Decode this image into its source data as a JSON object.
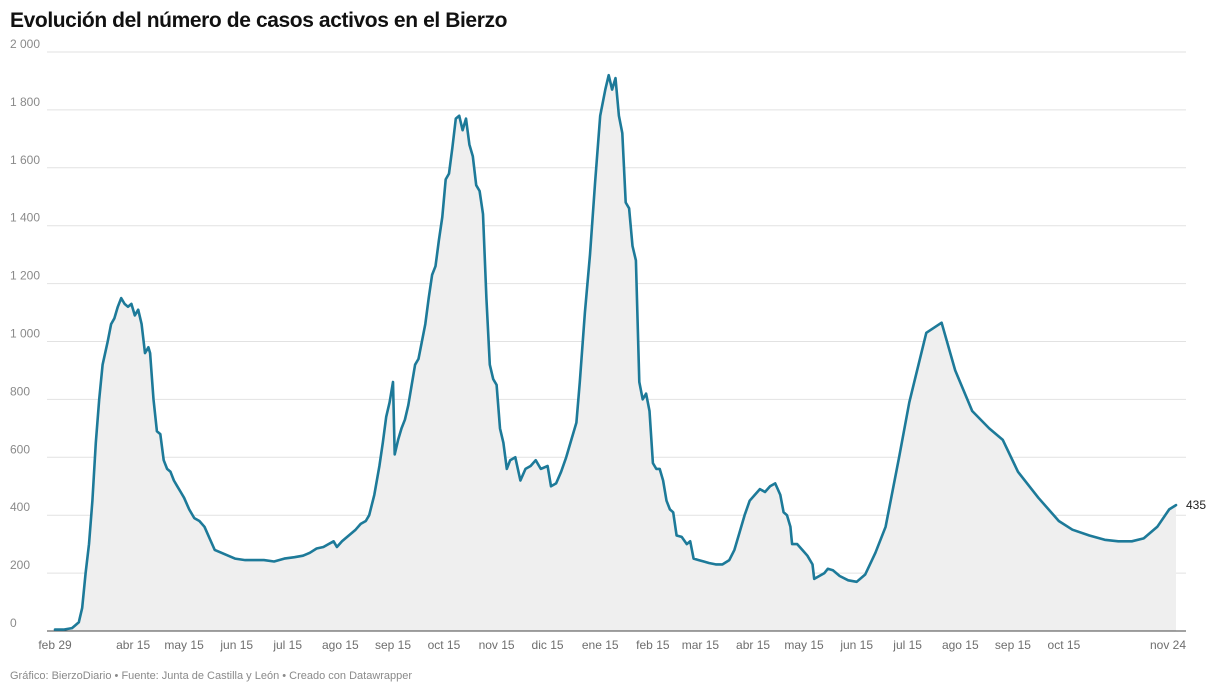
{
  "title": "Evolución del número de casos activos en el Bierzo",
  "footer": "Gráfico: BierzoDiario • Fuente: Junta de Castilla y León • Creado con Datawrapper",
  "colors": {
    "line": "#1d7a99",
    "area": "#efefef",
    "grid": "#e2e2e2",
    "axis": "#444444"
  },
  "chart_data": {
    "type": "area",
    "title": "Evolución del número de casos activos en el Bierzo",
    "xlabel": "",
    "ylabel": "",
    "ylim": [
      0,
      2000
    ],
    "yticks": [
      0,
      200,
      400,
      600,
      800,
      1000,
      1200,
      1400,
      1600,
      1800,
      2000
    ],
    "ytick_labels": [
      "0",
      "200",
      "400",
      "600",
      "800",
      "1 000",
      "1 200",
      "1 400",
      "1 600",
      "1 800",
      "2 000"
    ],
    "xlim": [
      "2020-02-29",
      "2021-11-24"
    ],
    "xticks": [
      {
        "date": "2020-02-29",
        "label": "feb 29"
      },
      {
        "date": "2020-04-15",
        "label": "abr 15"
      },
      {
        "date": "2020-05-15",
        "label": "may 15"
      },
      {
        "date": "2020-06-15",
        "label": "jun 15"
      },
      {
        "date": "2020-07-15",
        "label": "jul 15"
      },
      {
        "date": "2020-08-15",
        "label": "ago 15"
      },
      {
        "date": "2020-09-15",
        "label": "sep 15"
      },
      {
        "date": "2020-10-15",
        "label": "oct 15"
      },
      {
        "date": "2020-11-15",
        "label": "nov 15"
      },
      {
        "date": "2020-12-15",
        "label": "dic 15"
      },
      {
        "date": "2021-01-15",
        "label": "ene 15"
      },
      {
        "date": "2021-02-15",
        "label": "feb 15"
      },
      {
        "date": "2021-03-15",
        "label": "mar 15"
      },
      {
        "date": "2021-04-15",
        "label": "abr 15"
      },
      {
        "date": "2021-05-15",
        "label": "may 15"
      },
      {
        "date": "2021-06-15",
        "label": "jun 15"
      },
      {
        "date": "2021-07-15",
        "label": "jul 15"
      },
      {
        "date": "2021-08-15",
        "label": "ago 15"
      },
      {
        "date": "2021-09-15",
        "label": "sep 15"
      },
      {
        "date": "2021-10-15",
        "label": "oct 15"
      },
      {
        "date": "2021-11-24",
        "label": "nov 24"
      }
    ],
    "grid": true,
    "end_label": "435",
    "series": [
      {
        "points": [
          [
            "2020-02-29",
            5
          ],
          [
            "2020-03-05",
            5
          ],
          [
            "2020-03-10",
            10
          ],
          [
            "2020-03-12",
            20
          ],
          [
            "2020-03-14",
            30
          ],
          [
            "2020-03-16",
            80
          ],
          [
            "2020-03-18",
            200
          ],
          [
            "2020-03-20",
            300
          ],
          [
            "2020-03-22",
            450
          ],
          [
            "2020-03-24",
            650
          ],
          [
            "2020-03-26",
            800
          ],
          [
            "2020-03-28",
            920
          ],
          [
            "2020-03-31",
            1000
          ],
          [
            "2020-04-02",
            1060
          ],
          [
            "2020-04-04",
            1080
          ],
          [
            "2020-04-06",
            1120
          ],
          [
            "2020-04-08",
            1150
          ],
          [
            "2020-04-10",
            1130
          ],
          [
            "2020-04-12",
            1120
          ],
          [
            "2020-04-14",
            1130
          ],
          [
            "2020-04-16",
            1090
          ],
          [
            "2020-04-18",
            1110
          ],
          [
            "2020-04-20",
            1060
          ],
          [
            "2020-04-22",
            960
          ],
          [
            "2020-04-24",
            980
          ],
          [
            "2020-04-25",
            960
          ],
          [
            "2020-04-27",
            800
          ],
          [
            "2020-04-29",
            690
          ],
          [
            "2020-05-01",
            680
          ],
          [
            "2020-05-03",
            590
          ],
          [
            "2020-05-05",
            560
          ],
          [
            "2020-05-07",
            550
          ],
          [
            "2020-05-09",
            520
          ],
          [
            "2020-05-11",
            500
          ],
          [
            "2020-05-13",
            480
          ],
          [
            "2020-05-15",
            460
          ],
          [
            "2020-05-18",
            420
          ],
          [
            "2020-05-21",
            390
          ],
          [
            "2020-05-24",
            380
          ],
          [
            "2020-05-27",
            360
          ],
          [
            "2020-05-30",
            320
          ],
          [
            "2020-06-02",
            280
          ],
          [
            "2020-06-06",
            270
          ],
          [
            "2020-06-10",
            260
          ],
          [
            "2020-06-14",
            250
          ],
          [
            "2020-06-20",
            245
          ],
          [
            "2020-06-25",
            245
          ],
          [
            "2020-07-01",
            245
          ],
          [
            "2020-07-07",
            240
          ],
          [
            "2020-07-13",
            250
          ],
          [
            "2020-07-19",
            255
          ],
          [
            "2020-07-24",
            260
          ],
          [
            "2020-07-28",
            270
          ],
          [
            "2020-08-01",
            285
          ],
          [
            "2020-08-05",
            290
          ],
          [
            "2020-08-08",
            300
          ],
          [
            "2020-08-11",
            310
          ],
          [
            "2020-08-13",
            290
          ],
          [
            "2020-08-16",
            310
          ],
          [
            "2020-08-20",
            330
          ],
          [
            "2020-08-24",
            350
          ],
          [
            "2020-08-27",
            370
          ],
          [
            "2020-08-30",
            380
          ],
          [
            "2020-09-01",
            400
          ],
          [
            "2020-09-04",
            470
          ],
          [
            "2020-09-07",
            570
          ],
          [
            "2020-09-09",
            650
          ],
          [
            "2020-09-11",
            740
          ],
          [
            "2020-09-13",
            790
          ],
          [
            "2020-09-15",
            860
          ],
          [
            "2020-09-16",
            610
          ],
          [
            "2020-09-18",
            660
          ],
          [
            "2020-09-20",
            700
          ],
          [
            "2020-09-22",
            730
          ],
          [
            "2020-09-24",
            780
          ],
          [
            "2020-09-26",
            850
          ],
          [
            "2020-09-28",
            920
          ],
          [
            "2020-09-30",
            940
          ],
          [
            "2020-10-02",
            1000
          ],
          [
            "2020-10-04",
            1060
          ],
          [
            "2020-10-06",
            1150
          ],
          [
            "2020-10-08",
            1230
          ],
          [
            "2020-10-10",
            1260
          ],
          [
            "2020-10-12",
            1350
          ],
          [
            "2020-10-14",
            1430
          ],
          [
            "2020-10-16",
            1560
          ],
          [
            "2020-10-18",
            1580
          ],
          [
            "2020-10-20",
            1670
          ],
          [
            "2020-10-22",
            1770
          ],
          [
            "2020-10-24",
            1780
          ],
          [
            "2020-10-26",
            1730
          ],
          [
            "2020-10-28",
            1770
          ],
          [
            "2020-10-30",
            1680
          ],
          [
            "2020-11-01",
            1640
          ],
          [
            "2020-11-03",
            1540
          ],
          [
            "2020-11-05",
            1520
          ],
          [
            "2020-11-07",
            1440
          ],
          [
            "2020-11-09",
            1150
          ],
          [
            "2020-11-11",
            920
          ],
          [
            "2020-11-13",
            870
          ],
          [
            "2020-11-15",
            850
          ],
          [
            "2020-11-17",
            700
          ],
          [
            "2020-11-19",
            650
          ],
          [
            "2020-11-21",
            560
          ],
          [
            "2020-11-23",
            590
          ],
          [
            "2020-11-26",
            600
          ],
          [
            "2020-11-29",
            520
          ],
          [
            "2020-12-02",
            560
          ],
          [
            "2020-12-05",
            570
          ],
          [
            "2020-12-08",
            590
          ],
          [
            "2020-12-11",
            560
          ],
          [
            "2020-12-15",
            570
          ],
          [
            "2020-12-17",
            500
          ],
          [
            "2020-12-20",
            510
          ],
          [
            "2020-12-23",
            550
          ],
          [
            "2020-12-26",
            600
          ],
          [
            "2020-12-29",
            660
          ],
          [
            "2021-01-01",
            720
          ],
          [
            "2021-01-03",
            860
          ],
          [
            "2021-01-06",
            1100
          ],
          [
            "2021-01-09",
            1300
          ],
          [
            "2021-01-12",
            1550
          ],
          [
            "2021-01-15",
            1780
          ],
          [
            "2021-01-18",
            1870
          ],
          [
            "2021-01-20",
            1920
          ],
          [
            "2021-01-22",
            1870
          ],
          [
            "2021-01-24",
            1910
          ],
          [
            "2021-01-26",
            1780
          ],
          [
            "2021-01-28",
            1720
          ],
          [
            "2021-01-30",
            1480
          ],
          [
            "2021-02-01",
            1460
          ],
          [
            "2021-02-03",
            1330
          ],
          [
            "2021-02-05",
            1280
          ],
          [
            "2021-02-07",
            860
          ],
          [
            "2021-02-09",
            800
          ],
          [
            "2021-02-11",
            820
          ],
          [
            "2021-02-13",
            760
          ],
          [
            "2021-02-15",
            580
          ],
          [
            "2021-02-17",
            560
          ],
          [
            "2021-02-19",
            560
          ],
          [
            "2021-02-21",
            520
          ],
          [
            "2021-02-23",
            450
          ],
          [
            "2021-02-25",
            420
          ],
          [
            "2021-02-27",
            410
          ],
          [
            "2021-03-01",
            330
          ],
          [
            "2021-03-04",
            325
          ],
          [
            "2021-03-07",
            300
          ],
          [
            "2021-03-09",
            310
          ],
          [
            "2021-03-11",
            250
          ],
          [
            "2021-03-14",
            245
          ],
          [
            "2021-03-17",
            240
          ],
          [
            "2021-03-20",
            235
          ],
          [
            "2021-03-24",
            230
          ],
          [
            "2021-03-28",
            230
          ],
          [
            "2021-04-01",
            245
          ],
          [
            "2021-04-04",
            280
          ],
          [
            "2021-04-07",
            340
          ],
          [
            "2021-04-10",
            400
          ],
          [
            "2021-04-13",
            450
          ],
          [
            "2021-04-16",
            470
          ],
          [
            "2021-04-19",
            490
          ],
          [
            "2021-04-22",
            480
          ],
          [
            "2021-04-25",
            500
          ],
          [
            "2021-04-28",
            510
          ],
          [
            "2021-05-01",
            470
          ],
          [
            "2021-05-03",
            410
          ],
          [
            "2021-05-05",
            400
          ],
          [
            "2021-05-07",
            360
          ],
          [
            "2021-05-08",
            300
          ],
          [
            "2021-05-11",
            300
          ],
          [
            "2021-05-14",
            280
          ],
          [
            "2021-05-17",
            260
          ],
          [
            "2021-05-20",
            230
          ],
          [
            "2021-05-21",
            180
          ],
          [
            "2021-05-24",
            190
          ],
          [
            "2021-05-27",
            200
          ],
          [
            "2021-05-29",
            215
          ],
          [
            "2021-06-01",
            210
          ],
          [
            "2021-06-05",
            190
          ],
          [
            "2021-06-10",
            175
          ],
          [
            "2021-06-15",
            170
          ],
          [
            "2021-06-20",
            195
          ],
          [
            "2021-06-26",
            270
          ],
          [
            "2021-07-02",
            360
          ],
          [
            "2021-07-10",
            600
          ],
          [
            "2021-07-16",
            790
          ],
          [
            "2021-07-26",
            1030
          ],
          [
            "2021-08-04",
            1065
          ],
          [
            "2021-08-12",
            900
          ],
          [
            "2021-08-22",
            760
          ],
          [
            "2021-09-01",
            700
          ],
          [
            "2021-09-09",
            660
          ],
          [
            "2021-09-18",
            550
          ],
          [
            "2021-09-30",
            460
          ],
          [
            "2021-10-12",
            380
          ],
          [
            "2021-10-20",
            350
          ],
          [
            "2021-10-30",
            330
          ],
          [
            "2021-11-08",
            315
          ],
          [
            "2021-11-16",
            310
          ],
          [
            "2021-11-24",
            310
          ],
          [
            "2021-12-01",
            320
          ],
          [
            "2021-12-09",
            360
          ],
          [
            "2021-12-16",
            420
          ],
          [
            "2021-12-20",
            435
          ]
        ]
      }
    ]
  }
}
